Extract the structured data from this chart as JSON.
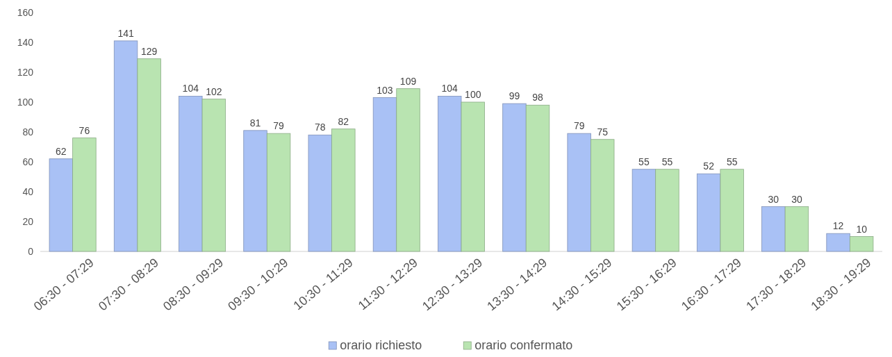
{
  "chart_data": {
    "type": "bar",
    "categories": [
      "06:30 - 07:29",
      "07:30 - 08:29",
      "08:30 - 09:29",
      "09:30 - 10:29",
      "10:30 - 11:29",
      "11:30 - 12:29",
      "12:30 - 13:29",
      "13:30 - 14:29",
      "14:30 - 15:29",
      "15:30 - 16:29",
      "16:30 - 17:29",
      "17:30 - 18:29",
      "18:30 - 19:29"
    ],
    "series": [
      {
        "name": "orario richiesto",
        "color": "#a9c1f5",
        "values": [
          62,
          141,
          104,
          81,
          78,
          103,
          104,
          99,
          79,
          55,
          52,
          30,
          12
        ]
      },
      {
        "name": "orario confermato",
        "color": "#b9e4b1",
        "values": [
          76,
          129,
          102,
          79,
          82,
          109,
          100,
          98,
          75,
          55,
          55,
          30,
          10
        ]
      }
    ],
    "ylim": [
      0,
      160
    ],
    "yticks": [
      0,
      20,
      40,
      60,
      80,
      100,
      120,
      140,
      160
    ],
    "data_labels": true,
    "legend": "bottom",
    "grid": false
  }
}
